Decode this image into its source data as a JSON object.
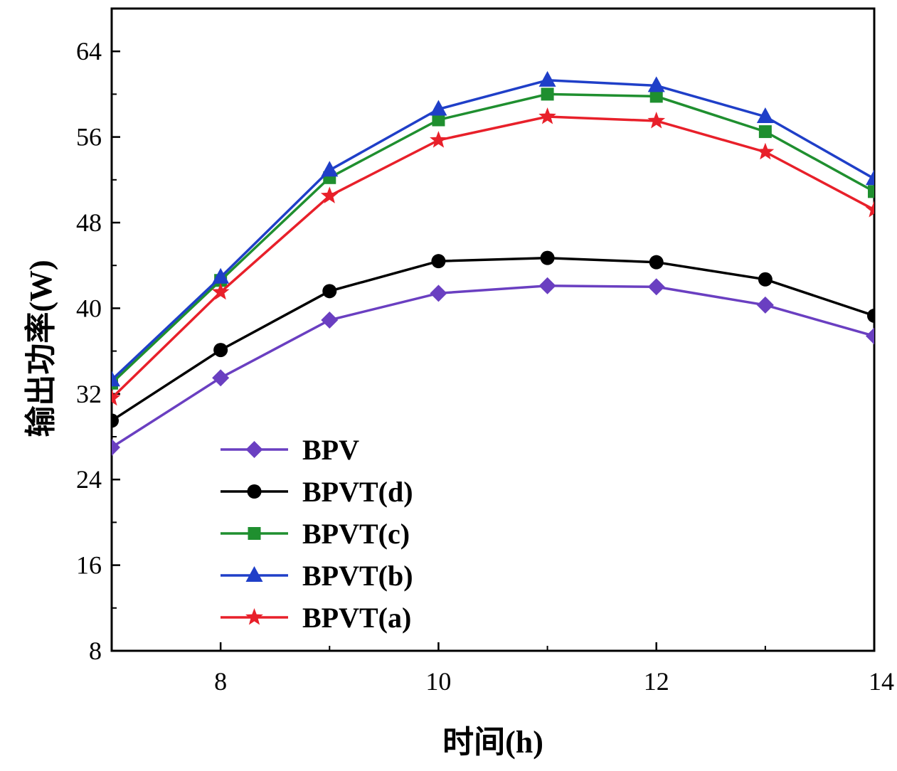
{
  "chart_data": {
    "type": "line",
    "xlabel": "时间(h)",
    "ylabel": "输出功率(W)",
    "xlim": [
      7,
      14
    ],
    "ylim": [
      8,
      68
    ],
    "x_ticks": [
      8,
      10,
      12,
      14
    ],
    "x_minor_ticks": [
      9,
      11,
      13
    ],
    "y_ticks": [
      8,
      16,
      24,
      32,
      40,
      48,
      56,
      64
    ],
    "grid": false,
    "legend_position": "lower-left",
    "x": [
      7,
      8,
      9,
      10,
      11,
      12,
      13,
      14
    ],
    "series": [
      {
        "name": "BPV",
        "marker": "diamond",
        "color": "#6a3fc1",
        "values": [
          27.0,
          33.5,
          38.9,
          41.4,
          42.1,
          42.0,
          40.3,
          37.4
        ]
      },
      {
        "name": "BPVT(d)",
        "marker": "circle",
        "color": "#000000",
        "values": [
          29.5,
          36.1,
          41.6,
          44.4,
          44.7,
          44.3,
          42.7,
          39.3
        ]
      },
      {
        "name": "BPVT(c)",
        "marker": "square",
        "color": "#1f8f2f",
        "values": [
          33.0,
          42.6,
          52.2,
          57.6,
          60.0,
          59.8,
          56.5,
          50.9
        ]
      },
      {
        "name": "BPVT(b)",
        "marker": "triangle",
        "color": "#1f3fc8",
        "values": [
          33.3,
          42.9,
          52.9,
          58.6,
          61.3,
          60.8,
          57.9,
          52.1
        ]
      },
      {
        "name": "BPVT(a)",
        "marker": "star",
        "color": "#e8202a",
        "values": [
          31.6,
          41.5,
          50.5,
          55.7,
          57.9,
          57.5,
          54.6,
          49.2
        ]
      }
    ]
  }
}
